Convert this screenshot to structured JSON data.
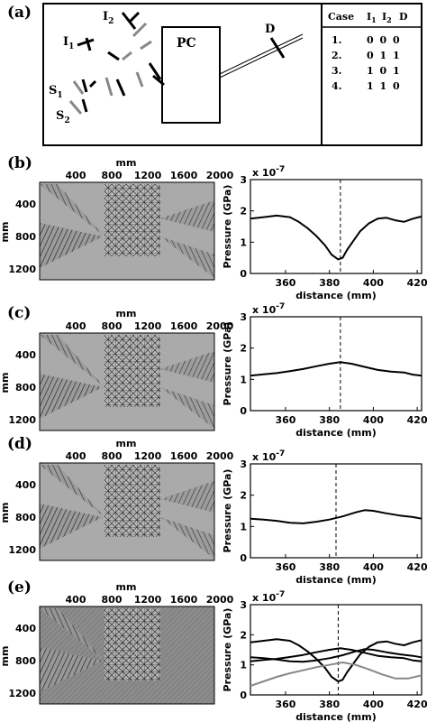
{
  "panel_labels": [
    "(a)",
    "(b)",
    "(c)",
    "(d)",
    "(e)"
  ],
  "schematic": {
    "pc_label": "PC",
    "source_labels": [
      {
        "main": "I",
        "sub": "2"
      },
      {
        "main": "I",
        "sub": "1"
      },
      {
        "main": "S",
        "sub": "1"
      },
      {
        "main": "S",
        "sub": "2"
      },
      {
        "main": "D",
        "sub": ""
      }
    ]
  },
  "case_table": {
    "headers": [
      "Case",
      "I",
      "I",
      "D"
    ],
    "header_subs": [
      "",
      "1",
      "2",
      ""
    ],
    "rows": [
      {
        "case": "1.",
        "vals": "0 0 0"
      },
      {
        "case": "2.",
        "vals": "0 1 1"
      },
      {
        "case": "3.",
        "vals": "1 0 1"
      },
      {
        "case": "4.",
        "vals": "1 1 0"
      }
    ]
  },
  "field_axes": {
    "x_unit": "mm",
    "y_unit": "mm",
    "x_ticks": [
      "400",
      "800",
      "1200",
      "1600",
      "2000"
    ],
    "y_ticks": [
      "400",
      "800",
      "1200"
    ]
  },
  "chart_data": [
    {
      "panel": "(b)",
      "type": "line",
      "xlabel": "distance (mm)",
      "ylabel": "Pressure (GPa)",
      "exponent": "x 10",
      "exponent_power": "-7",
      "xlim": [
        344,
        422
      ],
      "ylim": [
        0,
        3
      ],
      "x_ticks": [
        360,
        380,
        400,
        420
      ],
      "y_ticks": [
        0,
        1,
        2,
        3
      ],
      "marker_x": 385,
      "series": [
        {
          "color": "#000000",
          "x": [
            344,
            350,
            356,
            362,
            366,
            370,
            374,
            378,
            381,
            384,
            386,
            388,
            391,
            394,
            398,
            402,
            406,
            410,
            414,
            418,
            422
          ],
          "y": [
            1.75,
            1.8,
            1.85,
            1.8,
            1.65,
            1.45,
            1.2,
            0.9,
            0.6,
            0.45,
            0.5,
            0.75,
            1.05,
            1.35,
            1.6,
            1.75,
            1.78,
            1.7,
            1.65,
            1.75,
            1.82
          ]
        }
      ]
    },
    {
      "panel": "(c)",
      "type": "line",
      "xlabel": "distance (mm)",
      "ylabel": "Pressure (GPa)",
      "exponent": "x 10",
      "exponent_power": "-7",
      "xlim": [
        344,
        422
      ],
      "ylim": [
        0,
        3
      ],
      "x_ticks": [
        360,
        380,
        400,
        420
      ],
      "y_ticks": [
        0,
        1,
        2,
        3
      ],
      "marker_x": 385,
      "series": [
        {
          "color": "#000000",
          "x": [
            344,
            350,
            356,
            362,
            368,
            374,
            380,
            385,
            390,
            396,
            402,
            408,
            414,
            418,
            422
          ],
          "y": [
            1.12,
            1.16,
            1.2,
            1.26,
            1.33,
            1.42,
            1.5,
            1.55,
            1.5,
            1.4,
            1.3,
            1.25,
            1.22,
            1.15,
            1.12
          ]
        }
      ]
    },
    {
      "panel": "(d)",
      "type": "line",
      "xlabel": "distance (mm)",
      "ylabel": "Pressure (GPa)",
      "exponent": "x 10",
      "exponent_power": "-7",
      "xlim": [
        344,
        422
      ],
      "ylim": [
        0,
        3
      ],
      "x_ticks": [
        360,
        380,
        400,
        420
      ],
      "y_ticks": [
        0,
        1,
        2,
        3
      ],
      "marker_x": 383,
      "series": [
        {
          "color": "#000000",
          "x": [
            344,
            350,
            356,
            362,
            368,
            374,
            380,
            386,
            392,
            396,
            400,
            406,
            412,
            418,
            422
          ],
          "y": [
            1.25,
            1.22,
            1.18,
            1.12,
            1.1,
            1.15,
            1.22,
            1.32,
            1.45,
            1.52,
            1.5,
            1.42,
            1.35,
            1.3,
            1.25
          ]
        }
      ]
    },
    {
      "panel": "(e)",
      "type": "line",
      "xlabel": "distance (mm)",
      "ylabel": "Pressure (GPa)",
      "exponent": "x 10",
      "exponent_power": "-7",
      "xlim": [
        344,
        422
      ],
      "ylim": [
        0,
        3
      ],
      "x_ticks": [
        360,
        380,
        400,
        420
      ],
      "y_ticks": [
        0,
        1,
        2,
        3
      ],
      "marker_x": 384,
      "series": [
        {
          "color": "#000000",
          "x": [
            344,
            350,
            356,
            362,
            366,
            370,
            374,
            378,
            381,
            384,
            386,
            388,
            391,
            394,
            398,
            402,
            406,
            410,
            414,
            418,
            422
          ],
          "y": [
            1.75,
            1.8,
            1.85,
            1.8,
            1.65,
            1.45,
            1.2,
            0.9,
            0.6,
            0.45,
            0.5,
            0.75,
            1.05,
            1.35,
            1.6,
            1.75,
            1.78,
            1.7,
            1.65,
            1.75,
            1.82
          ]
        },
        {
          "color": "#000000",
          "x": [
            344,
            350,
            356,
            362,
            368,
            374,
            380,
            385,
            390,
            396,
            402,
            408,
            414,
            418,
            422
          ],
          "y": [
            1.12,
            1.16,
            1.2,
            1.26,
            1.33,
            1.42,
            1.5,
            1.55,
            1.5,
            1.4,
            1.3,
            1.25,
            1.22,
            1.15,
            1.12
          ]
        },
        {
          "color": "#000000",
          "x": [
            344,
            350,
            356,
            362,
            368,
            374,
            380,
            386,
            392,
            396,
            400,
            406,
            412,
            418,
            422
          ],
          "y": [
            1.25,
            1.22,
            1.18,
            1.12,
            1.1,
            1.15,
            1.22,
            1.32,
            1.45,
            1.52,
            1.5,
            1.42,
            1.35,
            1.3,
            1.25
          ]
        },
        {
          "color": "#888888",
          "x": [
            344,
            350,
            356,
            362,
            368,
            374,
            380,
            386,
            392,
            398,
            404,
            410,
            416,
            422
          ],
          "y": [
            0.3,
            0.45,
            0.6,
            0.72,
            0.82,
            0.92,
            1.0,
            1.08,
            1.0,
            0.85,
            0.68,
            0.55,
            0.55,
            0.65
          ]
        }
      ]
    }
  ]
}
